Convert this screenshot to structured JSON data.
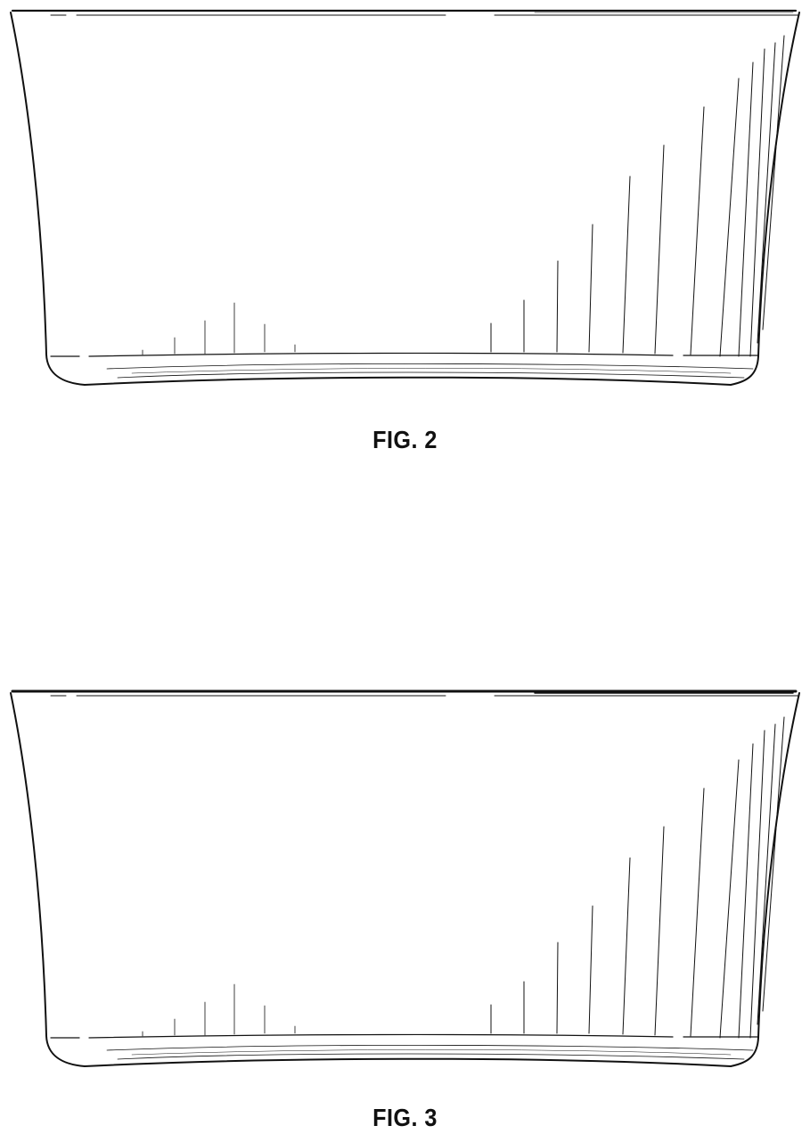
{
  "figures": [
    {
      "id": "fig2",
      "caption": "FIG. 2"
    },
    {
      "id": "fig3",
      "caption": "FIG. 3"
    }
  ],
  "line_color": "#111111"
}
